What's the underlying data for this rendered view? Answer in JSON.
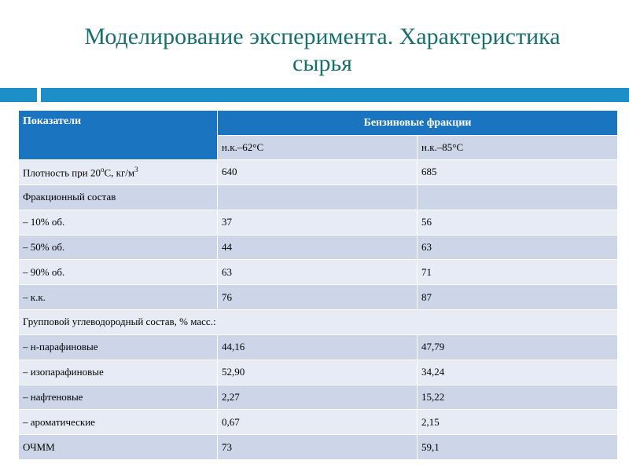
{
  "title": {
    "line1": "Моделирование эксперимента. Характеристика",
    "line2": "сырья"
  },
  "table": {
    "header": {
      "indicators": "Показатели",
      "group": "Бензиновые фракции",
      "col1": "н.к.–62°С",
      "col2": "н.к.–85°С"
    },
    "density": {
      "label": "Плотность при 20",
      "deg": "о",
      "unit": "С, кг/м",
      "sup": "3",
      "v1": "640",
      "v2": "685"
    },
    "rows": [
      {
        "label": "Фракционный состав",
        "v1": "",
        "v2": ""
      },
      {
        "label": "– 10% об.",
        "v1": "37",
        "v2": "56"
      },
      {
        "label": "– 50% об.",
        "v1": "44",
        "v2": "63"
      },
      {
        "label": "– 90% об.",
        "v1": "63",
        "v2": "71"
      },
      {
        "label": "– к.к.",
        "v1": "76",
        "v2": "87"
      }
    ],
    "group_composition": "Групповой углеводородный состав,  % масс.:",
    "rows2": [
      {
        "label": "– н-парафиновые",
        "v1": "44,16",
        "v2": "47,79"
      },
      {
        "label": "– изопарафиновые",
        "v1": "52,90",
        "v2": "34,24"
      },
      {
        "label": "– нафтеновые",
        "v1": "2,27",
        "v2": "15,22"
      },
      {
        "label": "– ароматические",
        "v1": "0,67",
        "v2": "2,15"
      },
      {
        "label": "ОЧММ",
        "v1": "73",
        "v2": "59,1"
      }
    ]
  },
  "colors": {
    "title": "#17706d",
    "accent_bar": "#1c8fc9",
    "header": "#1b74c0",
    "row_dark": "#cdd5e8",
    "row_light": "#e7ebf5"
  }
}
